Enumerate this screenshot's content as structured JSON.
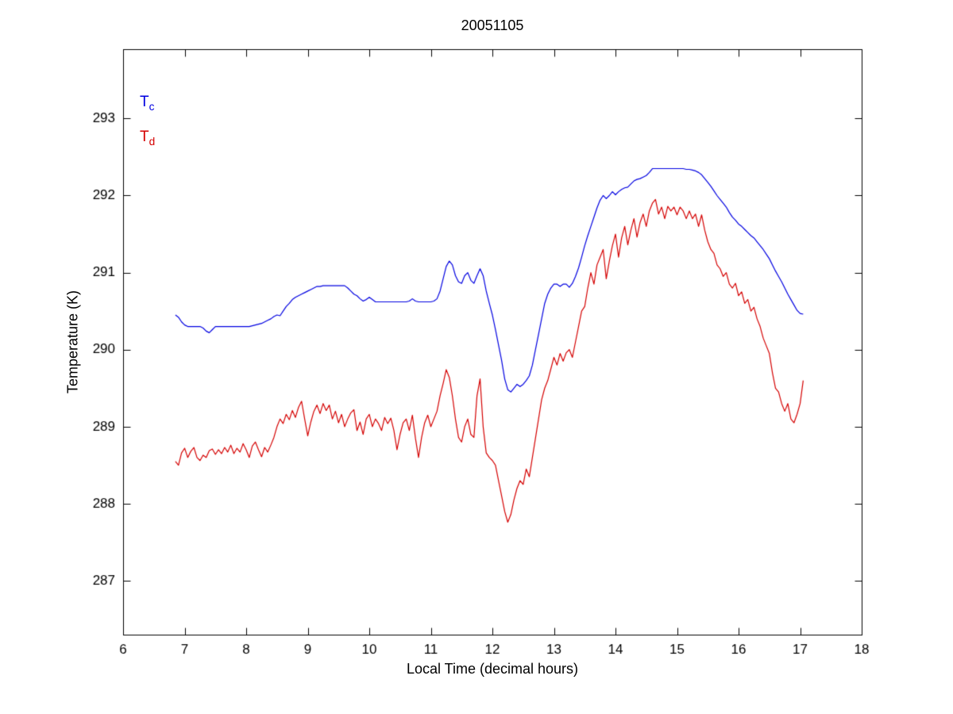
{
  "figure": {
    "title": "20051105",
    "xlabel": "Local Time (decimal hours)",
    "ylabel": "Temperature (K)",
    "legend": [
      {
        "main": "T",
        "sub": "c",
        "color": "#0000E0"
      },
      {
        "main": "T",
        "sub": "d",
        "color": "#D40000"
      }
    ]
  },
  "chart_data": {
    "type": "line",
    "title": "20051105",
    "xlabel": "Local Time (decimal hours)",
    "ylabel": "Temperature (K)",
    "xlim": [
      6,
      18
    ],
    "ylim": [
      286.3,
      293.9
    ],
    "xticks": [
      6,
      7,
      8,
      9,
      10,
      11,
      12,
      13,
      14,
      15,
      16,
      17,
      18
    ],
    "yticks": [
      287,
      288,
      289,
      290,
      291,
      292,
      293
    ],
    "grid": false,
    "legend_position": "top-left-inside",
    "x_start": 6.85,
    "x_step": 0.05,
    "series": [
      {
        "name": "Tc",
        "color": "#0000E0",
        "values": [
          290.45,
          290.42,
          290.36,
          290.32,
          290.3,
          290.3,
          290.3,
          290.3,
          290.3,
          290.28,
          290.24,
          290.22,
          290.26,
          290.3,
          290.3,
          290.3,
          290.3,
          290.3,
          290.3,
          290.3,
          290.3,
          290.3,
          290.3,
          290.3,
          290.3,
          290.31,
          290.32,
          290.33,
          290.34,
          290.36,
          290.38,
          290.4,
          290.43,
          290.45,
          290.44,
          290.5,
          290.56,
          290.6,
          290.65,
          290.68,
          290.7,
          290.72,
          290.74,
          290.76,
          290.78,
          290.8,
          290.82,
          290.82,
          290.83,
          290.83,
          290.83,
          290.83,
          290.83,
          290.83,
          290.83,
          290.83,
          290.8,
          290.76,
          290.72,
          290.7,
          290.66,
          290.63,
          290.65,
          290.68,
          290.65,
          290.62,
          290.62,
          290.62,
          290.62,
          290.62,
          290.62,
          290.62,
          290.62,
          290.62,
          290.62,
          290.62,
          290.63,
          290.66,
          290.63,
          290.62,
          290.62,
          290.62,
          290.62,
          290.62,
          290.63,
          290.66,
          290.76,
          290.92,
          291.08,
          291.15,
          291.1,
          290.96,
          290.88,
          290.86,
          290.96,
          291.0,
          290.9,
          290.86,
          290.96,
          291.05,
          290.96,
          290.76,
          290.6,
          290.45,
          290.26,
          290.06,
          289.86,
          289.62,
          289.48,
          289.45,
          289.5,
          289.55,
          289.52,
          289.55,
          289.6,
          289.66,
          289.8,
          290.0,
          290.2,
          290.4,
          290.6,
          290.72,
          290.8,
          290.85,
          290.85,
          290.82,
          290.85,
          290.85,
          290.81,
          290.86,
          290.95,
          291.06,
          291.2,
          291.35,
          291.48,
          291.6,
          291.72,
          291.84,
          291.94,
          292.0,
          291.96,
          292.0,
          292.05,
          292.01,
          292.05,
          292.08,
          292.1,
          292.11,
          292.15,
          292.19,
          292.21,
          292.22,
          292.24,
          292.26,
          292.3,
          292.35,
          292.35,
          292.35,
          292.35,
          292.35,
          292.35,
          292.35,
          292.35,
          292.35,
          292.35,
          292.35,
          292.34,
          292.34,
          292.33,
          292.32,
          292.3,
          292.27,
          292.22,
          292.17,
          292.12,
          292.06,
          292.0,
          291.95,
          291.9,
          291.85,
          291.78,
          291.72,
          291.68,
          291.63,
          291.6,
          291.56,
          291.52,
          291.48,
          291.45,
          291.4,
          291.35,
          291.3,
          291.24,
          291.18,
          291.1,
          291.02,
          290.95,
          290.88,
          290.8,
          290.72,
          290.65,
          290.58,
          290.51,
          290.47,
          290.46
        ]
      },
      {
        "name": "Td",
        "color": "#D40000",
        "values": [
          288.55,
          288.5,
          288.66,
          288.72,
          288.6,
          288.68,
          288.73,
          288.6,
          288.56,
          288.63,
          288.6,
          288.69,
          288.71,
          288.64,
          288.7,
          288.65,
          288.73,
          288.67,
          288.76,
          288.65,
          288.72,
          288.67,
          288.78,
          288.7,
          288.6,
          288.75,
          288.8,
          288.7,
          288.61,
          288.73,
          288.67,
          288.76,
          288.86,
          289.0,
          289.1,
          289.04,
          289.16,
          289.09,
          289.21,
          289.12,
          289.25,
          289.33,
          289.1,
          288.88,
          289.06,
          289.2,
          289.28,
          289.17,
          289.3,
          289.21,
          289.28,
          289.1,
          289.2,
          289.05,
          289.16,
          289.0,
          289.1,
          289.18,
          289.22,
          288.95,
          289.06,
          288.9,
          289.1,
          289.16,
          289.0,
          289.1,
          289.04,
          288.95,
          289.12,
          289.04,
          289.11,
          288.95,
          288.7,
          288.9,
          289.05,
          289.1,
          288.95,
          289.15,
          288.85,
          288.6,
          288.86,
          289.05,
          289.15,
          289.0,
          289.1,
          289.2,
          289.4,
          289.56,
          289.74,
          289.64,
          289.4,
          289.1,
          288.86,
          288.8,
          289.0,
          289.1,
          288.9,
          288.86,
          289.4,
          289.62,
          289.0,
          288.66,
          288.6,
          288.56,
          288.5,
          288.3,
          288.1,
          287.9,
          287.76,
          287.86,
          288.05,
          288.2,
          288.3,
          288.25,
          288.45,
          288.35,
          288.6,
          288.85,
          289.1,
          289.35,
          289.5,
          289.6,
          289.75,
          289.9,
          289.8,
          289.95,
          289.85,
          289.96,
          290.0,
          289.9,
          290.1,
          290.3,
          290.5,
          290.56,
          290.8,
          291.0,
          290.85,
          291.1,
          291.2,
          291.3,
          290.92,
          291.15,
          291.35,
          291.5,
          291.2,
          291.45,
          291.6,
          291.36,
          291.55,
          291.7,
          291.46,
          291.65,
          291.76,
          291.6,
          291.8,
          291.9,
          291.95,
          291.76,
          291.85,
          291.7,
          291.86,
          291.8,
          291.85,
          291.75,
          291.85,
          291.8,
          291.7,
          291.8,
          291.7,
          291.76,
          291.6,
          291.75,
          291.55,
          291.4,
          291.3,
          291.25,
          291.1,
          291.05,
          290.95,
          291.0,
          290.85,
          290.8,
          290.86,
          290.7,
          290.75,
          290.6,
          290.65,
          290.5,
          290.55,
          290.4,
          290.3,
          290.15,
          290.05,
          289.95,
          289.7,
          289.5,
          289.45,
          289.3,
          289.2,
          289.3,
          289.1,
          289.05,
          289.16,
          289.3,
          289.6
        ]
      }
    ]
  }
}
